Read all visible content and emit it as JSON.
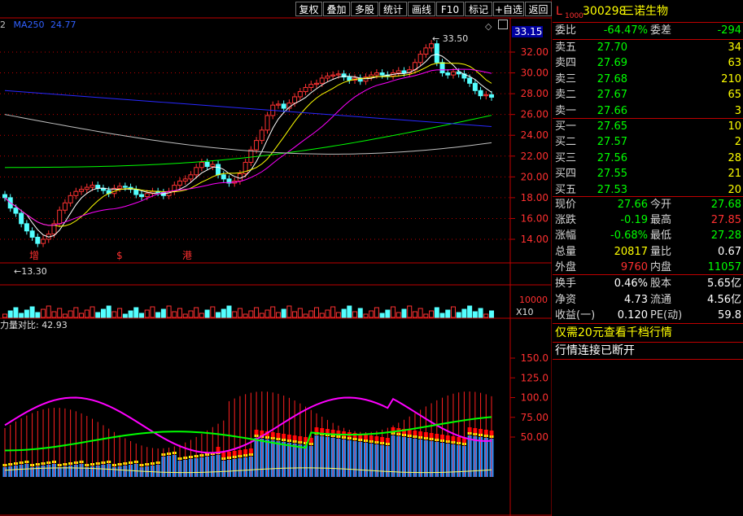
{
  "toolbar": {
    "buttons": [
      "复权",
      "叠加",
      "多股",
      "统计",
      "画线",
      "F10",
      "标记",
      "+自选",
      "返回"
    ],
    "diamond_icon": "diamond-icon"
  },
  "chart": {
    "ma_label": "MA250",
    "ma_value": "24.77",
    "ma_prefix": "2",
    "price_ticks": [
      "32.00",
      "30.00",
      "28.00",
      "26.00",
      "24.00",
      "22.00",
      "20.00",
      "18.00",
      "16.00",
      "14.00"
    ],
    "current_price_tag": "33.15",
    "high_mark": "33.50",
    "low_mark": "13.30",
    "event_markers": [
      "增",
      "$",
      "港"
    ],
    "volume_ticks": [
      "10000"
    ],
    "volume_unit": "X10",
    "indicator_title": "力量对比: 42.93",
    "indicator_ticks": [
      "150.0",
      "125.0",
      "100.0",
      "75.00",
      "50.00"
    ],
    "colors": {
      "up": "#ff3232",
      "down": "#54ffff",
      "ma5": "#ffffff",
      "ma10": "#ffff00",
      "ma20": "#ff00ff",
      "ma60": "#00ff00",
      "ma120": "#3030ff",
      "ma250": "#c0c0c0",
      "grid": "#c00000"
    }
  },
  "quote": {
    "code_prefix": "L",
    "code_sub": "1000",
    "code": "300298",
    "name": "三诺生物",
    "weibi_label": "委比",
    "weibi": "-64.47%",
    "weicha_label": "委差",
    "weicha": "-294",
    "asks": [
      {
        "label": "卖五",
        "price": "27.70",
        "vol": "34"
      },
      {
        "label": "卖四",
        "price": "27.69",
        "vol": "63"
      },
      {
        "label": "卖三",
        "price": "27.68",
        "vol": "210"
      },
      {
        "label": "卖二",
        "price": "27.67",
        "vol": "65"
      },
      {
        "label": "卖一",
        "price": "27.66",
        "vol": "3"
      }
    ],
    "bids": [
      {
        "label": "买一",
        "price": "27.65",
        "vol": "10"
      },
      {
        "label": "买二",
        "price": "27.57",
        "vol": "2"
      },
      {
        "label": "买三",
        "price": "27.56",
        "vol": "28"
      },
      {
        "label": "买四",
        "price": "27.55",
        "vol": "21"
      },
      {
        "label": "买五",
        "price": "27.53",
        "vol": "20"
      }
    ],
    "stats": [
      {
        "l1": "现价",
        "v1": "27.66",
        "l2": "今开",
        "v2": "27.68"
      },
      {
        "l1": "涨跌",
        "v1": "-0.19",
        "l2": "最高",
        "v2": "27.85"
      },
      {
        "l1": "涨幅",
        "v1": "-0.68%",
        "l2": "最低",
        "v2": "27.28"
      },
      {
        "l1": "总量",
        "v1": "20817",
        "l2": "量比",
        "v2": "0.67"
      },
      {
        "l1": "外盘",
        "v1": "9760",
        "l2": "内盘",
        "v2": "11057"
      }
    ],
    "stats2": [
      {
        "l1": "换手",
        "v1": "0.46%",
        "l2": "股本",
        "v2": "5.65亿"
      },
      {
        "l1": "净资",
        "v1": "4.73",
        "l2": "流通",
        "v2": "4.56亿"
      },
      {
        "l1": "收益(一)",
        "v1": "0.120",
        "l2": "PE(动)",
        "v2": "59.8"
      }
    ],
    "promo": "仅需20元查看千档行情",
    "status": "行情连接已断开"
  }
}
